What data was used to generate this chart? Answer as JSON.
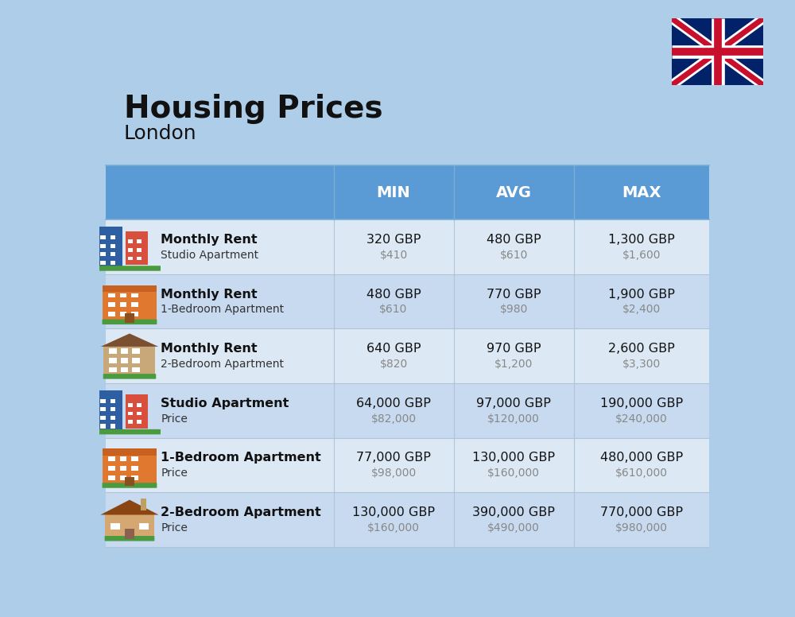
{
  "title": "Housing Prices",
  "subtitle": "London",
  "background_color": "#aecde8",
  "header_bg_color": "#5b9bd5",
  "row_bg_colors": [
    "#dce9f5",
    "#c8daf0"
  ],
  "col_headers": [
    "MIN",
    "AVG",
    "MAX"
  ],
  "rows": [
    {
      "bold_label": "Monthly Rent",
      "sub_label": "Studio Apartment",
      "min_gbp": "320 GBP",
      "min_usd": "$410",
      "avg_gbp": "480 GBP",
      "avg_usd": "$610",
      "max_gbp": "1,300 GBP",
      "max_usd": "$1,600",
      "icon_type": "blue_studio"
    },
    {
      "bold_label": "Monthly Rent",
      "sub_label": "1-Bedroom Apartment",
      "min_gbp": "480 GBP",
      "min_usd": "$610",
      "avg_gbp": "770 GBP",
      "avg_usd": "$980",
      "max_gbp": "1,900 GBP",
      "max_usd": "$2,400",
      "icon_type": "orange_apt"
    },
    {
      "bold_label": "Monthly Rent",
      "sub_label": "2-Bedroom Apartment",
      "min_gbp": "640 GBP",
      "min_usd": "$820",
      "avg_gbp": "970 GBP",
      "avg_usd": "$1,200",
      "max_gbp": "2,600 GBP",
      "max_usd": "$3,300",
      "icon_type": "tan_apt"
    },
    {
      "bold_label": "Studio Apartment",
      "sub_label": "Price",
      "min_gbp": "64,000 GBP",
      "min_usd": "$82,000",
      "avg_gbp": "97,000 GBP",
      "avg_usd": "$120,000",
      "max_gbp": "190,000 GBP",
      "max_usd": "$240,000",
      "icon_type": "blue_studio"
    },
    {
      "bold_label": "1-Bedroom Apartment",
      "sub_label": "Price",
      "min_gbp": "77,000 GBP",
      "min_usd": "$98,000",
      "avg_gbp": "130,000 GBP",
      "avg_usd": "$160,000",
      "max_gbp": "480,000 GBP",
      "max_usd": "$610,000",
      "icon_type": "orange_apt"
    },
    {
      "bold_label": "2-Bedroom Apartment",
      "sub_label": "Price",
      "min_gbp": "130,000 GBP",
      "min_usd": "$160,000",
      "avg_gbp": "390,000 GBP",
      "avg_usd": "$490,000",
      "max_gbp": "770,000 GBP",
      "max_usd": "$980,000",
      "icon_type": "tan_house"
    }
  ]
}
